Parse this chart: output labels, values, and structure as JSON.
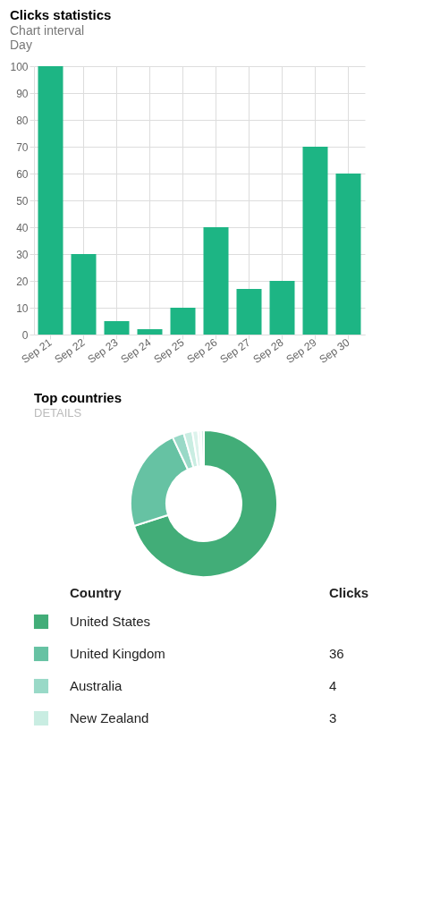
{
  "chart_data": [
    {
      "type": "bar",
      "title": "Clicks statistics",
      "annotations": [
        "Chart interval",
        "Day"
      ],
      "categories": [
        "Sep 21",
        "Sep 22",
        "Sep 23",
        "Sep 24",
        "Sep 25",
        "Sep 26",
        "Sep 27",
        "Sep 28",
        "Sep 29",
        "Sep 30"
      ],
      "values": [
        100,
        30,
        5,
        2,
        10,
        40,
        17,
        20,
        70,
        60
      ],
      "color": "#1db584",
      "ylim": [
        0,
        100
      ],
      "yticks": [
        0,
        10,
        20,
        30,
        40,
        50,
        60,
        70,
        80,
        90,
        100
      ],
      "grid": true
    },
    {
      "type": "donut",
      "title": "Top countries",
      "annotations": [
        "DETAILS",
        "Clicks"
      ],
      "legend_title": "Country",
      "categories": [
        "United States",
        "United Kingdom",
        "Australia",
        "New Zealand",
        null,
        null,
        null
      ],
      "values": [
        110,
        36,
        4,
        3,
        2,
        1,
        1
      ],
      "colors": [
        "#42ad78",
        "#66c2a3",
        "#99d9c7",
        "#c9ede2",
        "#dcf3ec",
        "#eef9f5",
        "#d3efe6"
      ],
      "value_labels": [
        null,
        "36",
        "4",
        "3",
        null,
        null,
        null
      ],
      "legend": "bottom"
    }
  ]
}
